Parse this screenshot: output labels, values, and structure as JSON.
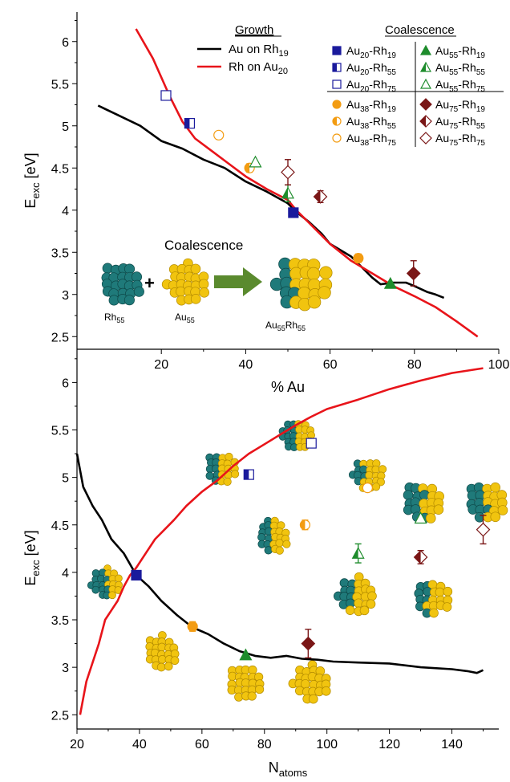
{
  "chart_data": [
    {
      "type": "line",
      "panel": "top",
      "xlabel": "% Au",
      "ylabel_main": "E",
      "ylabel_sub": "exc",
      "ylabel_unit": " [eV]",
      "xlim": [
        0,
        100
      ],
      "ylim": [
        2.35,
        6.35
      ],
      "xticks": [
        20,
        40,
        60,
        80,
        100
      ],
      "yticks": [
        2.5,
        3,
        3.5,
        4,
        4.5,
        5,
        5.5,
        6
      ],
      "series": [
        {
          "name": "Au on Rh19",
          "color": "#000000",
          "x": [
            5,
            10,
            15,
            20,
            25,
            30,
            35,
            40,
            45,
            50,
            52,
            55,
            58,
            60,
            65,
            70,
            72,
            75,
            78,
            80,
            83,
            85,
            87
          ],
          "y": [
            5.24,
            5.12,
            5.0,
            4.82,
            4.73,
            4.6,
            4.5,
            4.34,
            4.22,
            4.08,
            3.98,
            3.86,
            3.72,
            3.6,
            3.45,
            3.2,
            3.12,
            3.14,
            3.14,
            3.1,
            3.03,
            3.0,
            2.96
          ]
        },
        {
          "name": "Rh on Au20",
          "color": "#e8141a",
          "x": [
            14,
            18,
            22,
            25,
            28,
            32,
            36,
            40,
            45,
            50,
            52,
            55,
            60,
            65,
            70,
            75,
            80,
            85,
            90,
            95
          ],
          "y": [
            6.15,
            5.8,
            5.35,
            5.05,
            4.85,
            4.7,
            4.55,
            4.4,
            4.25,
            4.12,
            4.0,
            3.85,
            3.6,
            3.4,
            3.25,
            3.1,
            2.98,
            2.85,
            2.68,
            2.5
          ]
        }
      ],
      "points": [
        {
          "label": "Au20-Rh19",
          "x": 51.3,
          "y": 3.97,
          "marker": "square",
          "fill": "full",
          "color": "#1a1a9c"
        },
        {
          "label": "Au20-Rh55",
          "x": 26.7,
          "y": 5.03,
          "marker": "square",
          "fill": "half",
          "color": "#1a1a9c"
        },
        {
          "label": "Au20-Rh75",
          "x": 21.1,
          "y": 5.36,
          "marker": "square",
          "fill": "open",
          "color": "#1a1a9c"
        },
        {
          "label": "Au38-Rh19",
          "x": 66.7,
          "y": 3.43,
          "err": 0.05,
          "marker": "circle",
          "fill": "full",
          "color": "#f39c12"
        },
        {
          "label": "Au38-Rh55",
          "x": 40.9,
          "y": 4.5,
          "err": 0.05,
          "marker": "circle",
          "fill": "half",
          "color": "#f39c12"
        },
        {
          "label": "Au38-Rh75",
          "x": 33.6,
          "y": 4.89,
          "marker": "circle",
          "fill": "open",
          "color": "#f39c12"
        },
        {
          "label": "Au55-Rh19",
          "x": 74.3,
          "y": 3.13,
          "marker": "triangle",
          "fill": "full",
          "color": "#1e8c2c"
        },
        {
          "label": "Au55-Rh55",
          "x": 50.0,
          "y": 4.2,
          "err": 0.1,
          "marker": "triangle",
          "fill": "half",
          "color": "#1e8c2c"
        },
        {
          "label": "Au55-Rh75",
          "x": 42.3,
          "y": 4.57,
          "marker": "triangle",
          "fill": "open",
          "color": "#1e8c2c"
        },
        {
          "label": "Au75-Rh19",
          "x": 79.8,
          "y": 3.25,
          "err": 0.15,
          "marker": "diamond",
          "fill": "full",
          "color": "#7a1616"
        },
        {
          "label": "Au75-Rh55",
          "x": 57.7,
          "y": 4.16,
          "err": 0.07,
          "marker": "diamond",
          "fill": "half",
          "color": "#7a1616"
        },
        {
          "label": "Au75-Rh75",
          "x": 50.0,
          "y": 4.45,
          "err": 0.15,
          "marker": "diamond",
          "fill": "open",
          "color": "#7a1616"
        }
      ]
    },
    {
      "type": "line",
      "panel": "bottom",
      "xlabel_main": "N",
      "xlabel_sub": "atoms",
      "ylabel_main": "E",
      "ylabel_sub": "exc",
      "ylabel_unit": " [eV]",
      "xlim": [
        20,
        155
      ],
      "ylim": [
        2.35,
        6.35
      ],
      "xticks": [
        20,
        40,
        60,
        80,
        100,
        120,
        140
      ],
      "yticks": [
        2.5,
        3,
        3.5,
        4,
        4.5,
        5,
        5.5,
        6
      ],
      "series": [
        {
          "name": "Au on Rh19",
          "color": "#000000",
          "x": [
            20,
            22,
            25,
            28,
            31,
            35,
            39,
            43,
            47,
            52,
            57,
            62,
            67,
            72,
            77,
            82,
            87,
            92,
            97,
            102,
            110,
            120,
            130,
            140,
            145,
            148,
            150
          ],
          "y": [
            5.25,
            4.9,
            4.7,
            4.55,
            4.35,
            4.2,
            3.97,
            3.85,
            3.7,
            3.55,
            3.42,
            3.35,
            3.25,
            3.17,
            3.12,
            3.1,
            3.12,
            3.09,
            3.08,
            3.06,
            3.05,
            3.04,
            3.0,
            2.98,
            2.96,
            2.94,
            2.97
          ]
        },
        {
          "name": "Rh on Au20",
          "color": "#e8141a",
          "x": [
            21,
            23,
            25,
            27,
            29,
            31,
            33,
            35,
            37,
            39,
            42,
            45,
            48,
            51,
            55,
            60,
            65,
            70,
            75,
            80,
            85,
            90,
            95,
            100,
            110,
            120,
            130,
            140,
            150
          ],
          "y": [
            2.5,
            2.85,
            3.05,
            3.25,
            3.5,
            3.6,
            3.7,
            3.85,
            3.97,
            4.05,
            4.2,
            4.35,
            4.45,
            4.55,
            4.7,
            4.85,
            4.97,
            5.12,
            5.25,
            5.35,
            5.45,
            5.55,
            5.64,
            5.72,
            5.82,
            5.93,
            6.02,
            6.1,
            6.15
          ]
        }
      ],
      "points": [
        {
          "label": "Au20-Rh19",
          "x": 39,
          "y": 3.97,
          "marker": "square",
          "fill": "full",
          "color": "#1a1a9c"
        },
        {
          "label": "Au20-Rh55",
          "x": 75,
          "y": 5.03,
          "marker": "square",
          "fill": "half",
          "color": "#1a1a9c"
        },
        {
          "label": "Au20-Rh75",
          "x": 95,
          "y": 5.36,
          "marker": "square",
          "fill": "open",
          "color": "#1a1a9c"
        },
        {
          "label": "Au38-Rh19",
          "x": 57,
          "y": 3.43,
          "err": 0.05,
          "marker": "circle",
          "fill": "full",
          "color": "#f39c12"
        },
        {
          "label": "Au38-Rh55",
          "x": 93,
          "y": 4.5,
          "err": 0.05,
          "marker": "circle",
          "fill": "half",
          "color": "#f39c12"
        },
        {
          "label": "Au38-Rh75",
          "x": 113,
          "y": 4.89,
          "marker": "circle",
          "fill": "open",
          "color": "#f39c12"
        },
        {
          "label": "Au55-Rh19",
          "x": 74,
          "y": 3.13,
          "marker": "triangle",
          "fill": "full",
          "color": "#1e8c2c"
        },
        {
          "label": "Au55-Rh55",
          "x": 110,
          "y": 4.2,
          "err": 0.1,
          "marker": "triangle",
          "fill": "half",
          "color": "#1e8c2c"
        },
        {
          "label": "Au55-Rh75",
          "x": 130,
          "y": 4.57,
          "marker": "triangle",
          "fill": "open",
          "color": "#1e8c2c"
        },
        {
          "label": "Au75-Rh19",
          "x": 94,
          "y": 3.25,
          "err": 0.15,
          "marker": "diamond",
          "fill": "full",
          "color": "#7a1616"
        },
        {
          "label": "Au75-Rh55",
          "x": 130,
          "y": 4.16,
          "err": 0.07,
          "marker": "diamond",
          "fill": "half",
          "color": "#7a1616"
        },
        {
          "label": "Au75-Rh75",
          "x": 150,
          "y": 4.45,
          "err": 0.15,
          "marker": "diamond",
          "fill": "open",
          "color": "#7a1616"
        }
      ]
    }
  ],
  "legend": {
    "growth_title": "Growth",
    "coalescence_title": "Coalescence",
    "growth_items": [
      {
        "pre": "Au on Rh",
        "sub": "19",
        "color": "#000000"
      },
      {
        "pre": "Rh on Au",
        "sub": "20",
        "color": "#e8141a"
      }
    ],
    "coalescence_items": [
      {
        "a": "Au",
        "asub": "20",
        "b": "-Rh",
        "bsub": "19",
        "marker": "square",
        "fill": "full",
        "color": "#1a1a9c"
      },
      {
        "a": "Au",
        "asub": "20",
        "b": "-Rh",
        "bsub": "55",
        "marker": "square",
        "fill": "half",
        "color": "#1a1a9c"
      },
      {
        "a": "Au",
        "asub": "20",
        "b": "-Rh",
        "bsub": "75",
        "marker": "square",
        "fill": "open",
        "color": "#1a1a9c"
      },
      {
        "a": "Au",
        "asub": "38",
        "b": "-Rh",
        "bsub": "19",
        "marker": "circle",
        "fill": "full",
        "color": "#f39c12"
      },
      {
        "a": "Au",
        "asub": "38",
        "b": "-Rh",
        "bsub": "55",
        "marker": "circle",
        "fill": "half",
        "color": "#f39c12"
      },
      {
        "a": "Au",
        "asub": "38",
        "b": "-Rh",
        "bsub": "75",
        "marker": "circle",
        "fill": "open",
        "color": "#f39c12"
      },
      {
        "a": "Au",
        "asub": "55",
        "b": "-Rh",
        "bsub": "19",
        "marker": "triangle",
        "fill": "full",
        "color": "#1e8c2c"
      },
      {
        "a": "Au",
        "asub": "55",
        "b": "-Rh",
        "bsub": "55",
        "marker": "triangle",
        "fill": "half",
        "color": "#1e8c2c"
      },
      {
        "a": "Au",
        "asub": "55",
        "b": "-Rh",
        "bsub": "75",
        "marker": "triangle",
        "fill": "open",
        "color": "#1e8c2c"
      },
      {
        "a": "Au",
        "asub": "75",
        "b": "-Rh",
        "bsub": "19",
        "marker": "diamond",
        "fill": "full",
        "color": "#7a1616"
      },
      {
        "a": "Au",
        "asub": "75",
        "b": "-Rh",
        "bsub": "55",
        "marker": "diamond",
        "fill": "half",
        "color": "#7a1616"
      },
      {
        "a": "Au",
        "asub": "75",
        "b": "-Rh",
        "bsub": "75",
        "marker": "diamond",
        "fill": "open",
        "color": "#7a1616"
      }
    ]
  },
  "inset": {
    "title": "Coalescence",
    "plus": "+",
    "rh_label": "Rh",
    "rh_sub": "55",
    "au_label": "Au",
    "au_sub": "55",
    "product_a": "Au",
    "product_a_sub": "55",
    "product_b": "Rh",
    "product_b_sub": "55",
    "arrow_color": "#5a8a2e"
  },
  "colors": {
    "au_atom": "#f1c40f",
    "au_atom_dark": "#b38b00",
    "rh_atom": "#1f7a7a",
    "rh_atom_dark": "#0d4747"
  }
}
